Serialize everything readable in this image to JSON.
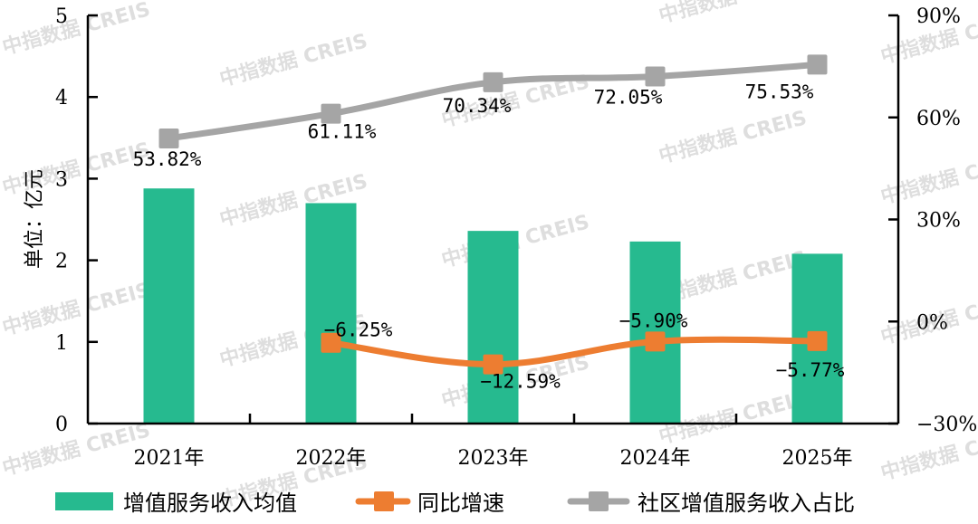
{
  "chart_data": {
    "type": "bar+line",
    "title": "",
    "categories": [
      "2021年",
      "2022年",
      "2023年",
      "2024年",
      "2025年"
    ],
    "ylabel_left": "单位：亿元",
    "ylim_left": [
      0,
      5
    ],
    "yticks_left": [
      "0",
      "1",
      "2",
      "3",
      "4",
      "5"
    ],
    "ylim_right": [
      -30,
      90
    ],
    "yticks_right": [
      "-30%",
      "0%",
      "30%",
      "60%",
      "90%"
    ],
    "grid": false,
    "legend_position": "bottom",
    "series": [
      {
        "name": "增值服务收入均值",
        "type": "bar",
        "axis": "left",
        "color": "#26BA8F",
        "values": [
          2.88,
          2.7,
          2.36,
          2.23,
          2.08
        ]
      },
      {
        "name": "同比增速",
        "type": "line",
        "axis": "right",
        "color": "#ED7D31",
        "values": [
          null,
          -6.25,
          -12.59,
          -5.9,
          -5.77
        ],
        "labels": [
          "",
          "-6.25%",
          "-12.59%",
          "-5.90%",
          "-5.77%"
        ]
      },
      {
        "name": "社区增值服务收入占比",
        "type": "line",
        "axis": "right",
        "color": "#A5A5A5",
        "values": [
          53.82,
          61.11,
          70.34,
          72.05,
          75.53
        ],
        "labels": [
          "53.82%",
          "61.11%",
          "70.34%",
          "72.05%",
          "75.53%"
        ]
      }
    ]
  },
  "legend": {
    "items": [
      {
        "label": "增值服务收入均值",
        "icon": "bar-swatch-icon"
      },
      {
        "label": "同比增速",
        "icon": "line-marker-icon"
      },
      {
        "label": "社区增值服务收入占比",
        "icon": "line-marker-icon"
      }
    ]
  },
  "watermark": {
    "text": "中指数据 CREIS"
  }
}
